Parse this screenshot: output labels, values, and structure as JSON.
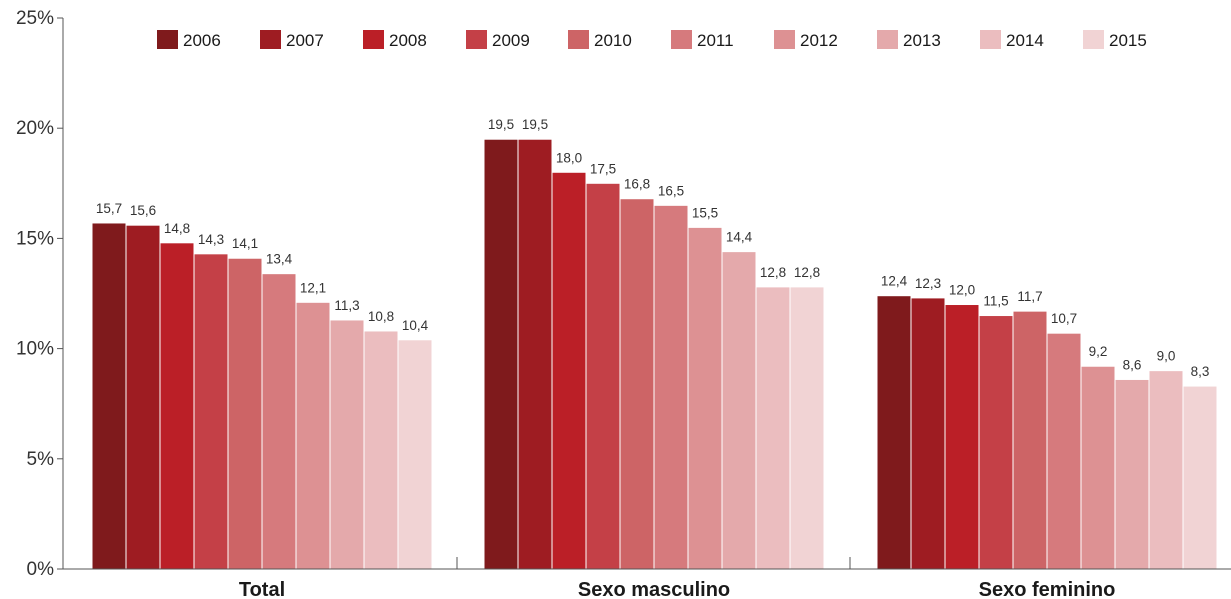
{
  "chart_data": {
    "type": "bar",
    "title": "",
    "xlabel": "",
    "ylabel": "",
    "categories": [
      "Total",
      "Sexo masculino",
      "Sexo feminino"
    ],
    "ylim": [
      0,
      25
    ],
    "yticks": [
      "0%",
      "5%",
      "10%",
      "15%",
      "20%",
      "25%"
    ],
    "ytick_values": [
      0,
      5,
      10,
      15,
      20,
      25
    ],
    "legend_position": "top",
    "series": [
      {
        "name": "2006",
        "color": "#7f1a1c",
        "values": [
          15.7,
          19.5,
          12.4
        ],
        "labels": [
          "15,7",
          "19,5",
          "12,4"
        ]
      },
      {
        "name": "2007",
        "color": "#9e1c22",
        "values": [
          15.6,
          19.5,
          12.3
        ],
        "labels": [
          "15,6",
          "19,5",
          "12,3"
        ]
      },
      {
        "name": "2008",
        "color": "#bb1f27",
        "values": [
          14.8,
          18.0,
          12.0
        ],
        "labels": [
          "14,8",
          "18,0",
          "12,0"
        ]
      },
      {
        "name": "2009",
        "color": "#c44047",
        "values": [
          14.3,
          17.5,
          11.5
        ],
        "labels": [
          "14,3",
          "17,5",
          "11,5"
        ]
      },
      {
        "name": "2010",
        "color": "#cd6466",
        "values": [
          14.1,
          16.8,
          11.7
        ],
        "labels": [
          "14,1",
          "16,8",
          "11,7"
        ]
      },
      {
        "name": "2011",
        "color": "#d67a7d",
        "values": [
          13.4,
          16.5,
          10.7
        ],
        "labels": [
          "13,4",
          "16,5",
          "10,7"
        ]
      },
      {
        "name": "2012",
        "color": "#dd9193",
        "values": [
          12.1,
          15.5,
          9.2
        ],
        "labels": [
          "12,1",
          "15,5",
          "9,2"
        ]
      },
      {
        "name": "2013",
        "color": "#e4a9ab",
        "values": [
          11.3,
          14.4,
          8.6
        ],
        "labels": [
          "11,3",
          "14,4",
          "8,6"
        ]
      },
      {
        "name": "2014",
        "color": "#ebbdbf",
        "values": [
          10.8,
          12.8,
          9.0
        ],
        "labels": [
          "10,8",
          "12,8",
          "9,0"
        ]
      },
      {
        "name": "2015",
        "color": "#f1d3d4",
        "values": [
          10.4,
          12.8,
          8.3
        ],
        "labels": [
          "10,4",
          "12,8",
          "8,3"
        ]
      }
    ]
  }
}
